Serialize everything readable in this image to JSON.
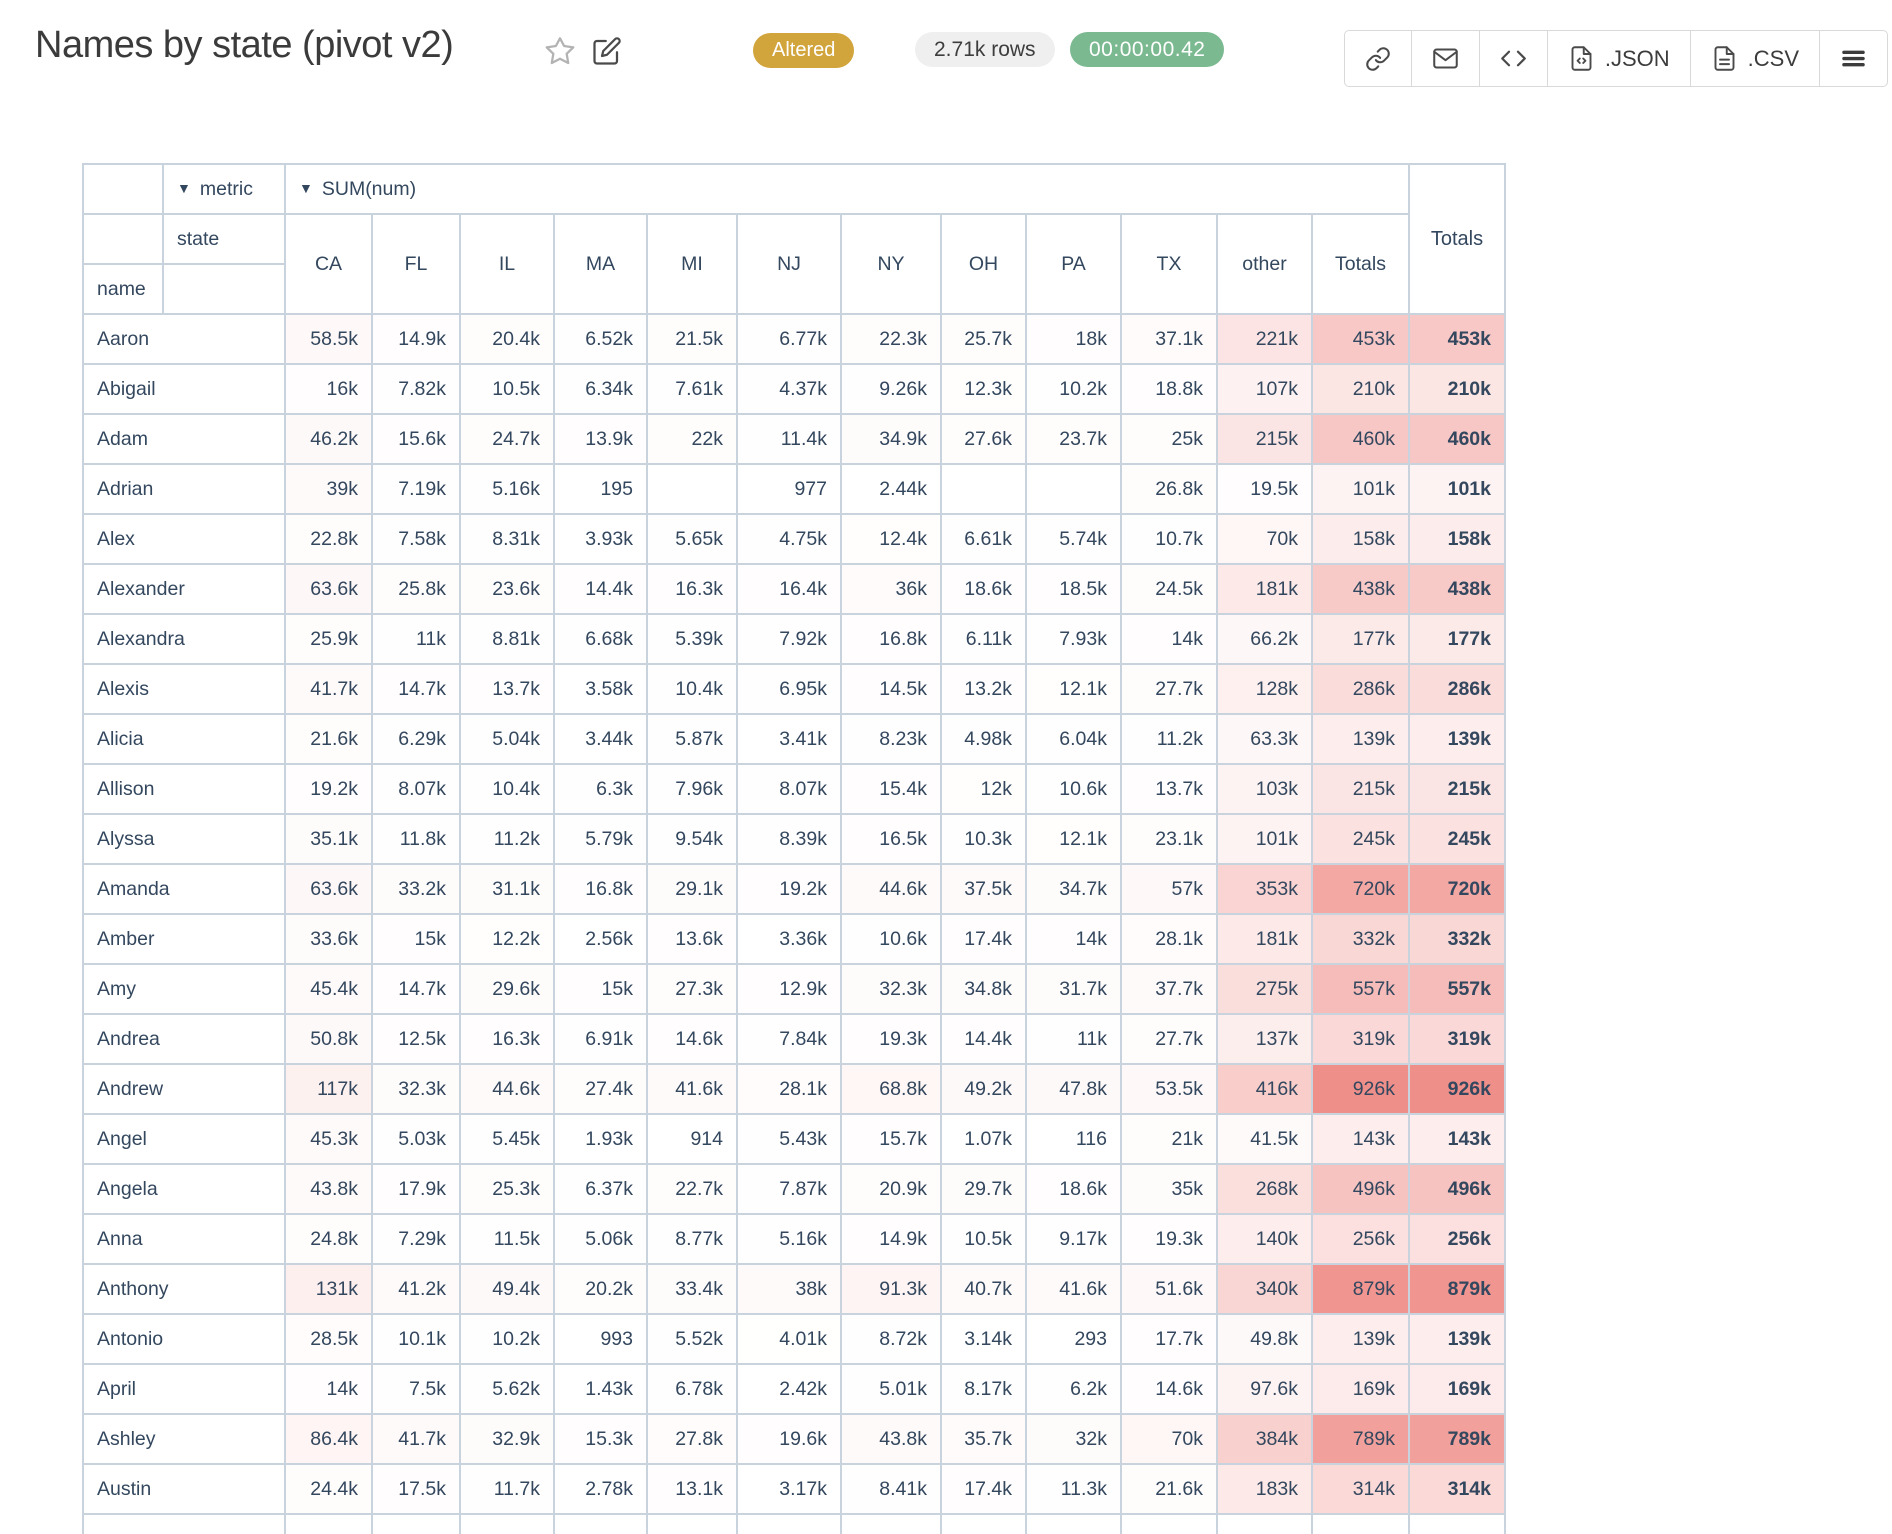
{
  "header": {
    "title": "Names by state (pivot v2)",
    "altered_badge": "Altered",
    "rows_count": "2.71k rows",
    "elapsed_time": "00:00:00.42",
    "export_json_label": ".JSON",
    "export_csv_label": ".CSV"
  },
  "colors": {
    "altered_badge_bg": "#d2a43c",
    "timer_badge_bg": "#7bb990",
    "rows_badge_bg": "#efefef",
    "heat_base": "#ef8f8a",
    "table_border": "#c9d3de",
    "table_text": "#33475e"
  },
  "pivot": {
    "dropdown_icon": "▼",
    "metric_dim": "metric",
    "metric_value": "SUM(num)",
    "col_dim": "state",
    "row_dim": "name",
    "columns": [
      "CA",
      "FL",
      "IL",
      "MA",
      "MI",
      "NJ",
      "NY",
      "OH",
      "PA",
      "TX",
      "other",
      "Totals"
    ],
    "grand_total_label": "Totals",
    "heat_max": 926000,
    "rows": [
      {
        "name": "Aaron",
        "values": [
          "58.5k",
          "14.9k",
          "20.4k",
          "6.52k",
          "21.5k",
          "6.77k",
          "22.3k",
          "25.7k",
          "18k",
          "37.1k",
          "221k",
          "453k"
        ],
        "total": "453k"
      },
      {
        "name": "Abigail",
        "values": [
          "16k",
          "7.82k",
          "10.5k",
          "6.34k",
          "7.61k",
          "4.37k",
          "9.26k",
          "12.3k",
          "10.2k",
          "18.8k",
          "107k",
          "210k"
        ],
        "total": "210k"
      },
      {
        "name": "Adam",
        "values": [
          "46.2k",
          "15.6k",
          "24.7k",
          "13.9k",
          "22k",
          "11.4k",
          "34.9k",
          "27.6k",
          "23.7k",
          "25k",
          "215k",
          "460k"
        ],
        "total": "460k"
      },
      {
        "name": "Adrian",
        "values": [
          "39k",
          "7.19k",
          "5.16k",
          "195",
          "",
          "977",
          "2.44k",
          "",
          "",
          "26.8k",
          "19.5k",
          "101k"
        ],
        "total": "101k"
      },
      {
        "name": "Alex",
        "values": [
          "22.8k",
          "7.58k",
          "8.31k",
          "3.93k",
          "5.65k",
          "4.75k",
          "12.4k",
          "6.61k",
          "5.74k",
          "10.7k",
          "70k",
          "158k"
        ],
        "total": "158k"
      },
      {
        "name": "Alexander",
        "values": [
          "63.6k",
          "25.8k",
          "23.6k",
          "14.4k",
          "16.3k",
          "16.4k",
          "36k",
          "18.6k",
          "18.5k",
          "24.5k",
          "181k",
          "438k"
        ],
        "total": "438k"
      },
      {
        "name": "Alexandra",
        "values": [
          "25.9k",
          "11k",
          "8.81k",
          "6.68k",
          "5.39k",
          "7.92k",
          "16.8k",
          "6.11k",
          "7.93k",
          "14k",
          "66.2k",
          "177k"
        ],
        "total": "177k"
      },
      {
        "name": "Alexis",
        "values": [
          "41.7k",
          "14.7k",
          "13.7k",
          "3.58k",
          "10.4k",
          "6.95k",
          "14.5k",
          "13.2k",
          "12.1k",
          "27.7k",
          "128k",
          "286k"
        ],
        "total": "286k"
      },
      {
        "name": "Alicia",
        "values": [
          "21.6k",
          "6.29k",
          "5.04k",
          "3.44k",
          "5.87k",
          "3.41k",
          "8.23k",
          "4.98k",
          "6.04k",
          "11.2k",
          "63.3k",
          "139k"
        ],
        "total": "139k"
      },
      {
        "name": "Allison",
        "values": [
          "19.2k",
          "8.07k",
          "10.4k",
          "6.3k",
          "7.96k",
          "8.07k",
          "15.4k",
          "12k",
          "10.6k",
          "13.7k",
          "103k",
          "215k"
        ],
        "total": "215k"
      },
      {
        "name": "Alyssa",
        "values": [
          "35.1k",
          "11.8k",
          "11.2k",
          "5.79k",
          "9.54k",
          "8.39k",
          "16.5k",
          "10.3k",
          "12.1k",
          "23.1k",
          "101k",
          "245k"
        ],
        "total": "245k"
      },
      {
        "name": "Amanda",
        "values": [
          "63.6k",
          "33.2k",
          "31.1k",
          "16.8k",
          "29.1k",
          "19.2k",
          "44.6k",
          "37.5k",
          "34.7k",
          "57k",
          "353k",
          "720k"
        ],
        "total": "720k"
      },
      {
        "name": "Amber",
        "values": [
          "33.6k",
          "15k",
          "12.2k",
          "2.56k",
          "13.6k",
          "3.36k",
          "10.6k",
          "17.4k",
          "14k",
          "28.1k",
          "181k",
          "332k"
        ],
        "total": "332k"
      },
      {
        "name": "Amy",
        "values": [
          "45.4k",
          "14.7k",
          "29.6k",
          "15k",
          "27.3k",
          "12.9k",
          "32.3k",
          "34.8k",
          "31.7k",
          "37.7k",
          "275k",
          "557k"
        ],
        "total": "557k"
      },
      {
        "name": "Andrea",
        "values": [
          "50.8k",
          "12.5k",
          "16.3k",
          "6.91k",
          "14.6k",
          "7.84k",
          "19.3k",
          "14.4k",
          "11k",
          "27.7k",
          "137k",
          "319k"
        ],
        "total": "319k"
      },
      {
        "name": "Andrew",
        "values": [
          "117k",
          "32.3k",
          "44.6k",
          "27.4k",
          "41.6k",
          "28.1k",
          "68.8k",
          "49.2k",
          "47.8k",
          "53.5k",
          "416k",
          "926k"
        ],
        "total": "926k"
      },
      {
        "name": "Angel",
        "values": [
          "45.3k",
          "5.03k",
          "5.45k",
          "1.93k",
          "914",
          "5.43k",
          "15.7k",
          "1.07k",
          "116",
          "21k",
          "41.5k",
          "143k"
        ],
        "total": "143k"
      },
      {
        "name": "Angela",
        "values": [
          "43.8k",
          "17.9k",
          "25.3k",
          "6.37k",
          "22.7k",
          "7.87k",
          "20.9k",
          "29.7k",
          "18.6k",
          "35k",
          "268k",
          "496k"
        ],
        "total": "496k"
      },
      {
        "name": "Anna",
        "values": [
          "24.8k",
          "7.29k",
          "11.5k",
          "5.06k",
          "8.77k",
          "5.16k",
          "14.9k",
          "10.5k",
          "9.17k",
          "19.3k",
          "140k",
          "256k"
        ],
        "total": "256k"
      },
      {
        "name": "Anthony",
        "values": [
          "131k",
          "41.2k",
          "49.4k",
          "20.2k",
          "33.4k",
          "38k",
          "91.3k",
          "40.7k",
          "41.6k",
          "51.6k",
          "340k",
          "879k"
        ],
        "total": "879k"
      },
      {
        "name": "Antonio",
        "values": [
          "28.5k",
          "10.1k",
          "10.2k",
          "993",
          "5.52k",
          "4.01k",
          "8.72k",
          "3.14k",
          "293",
          "17.7k",
          "49.8k",
          "139k"
        ],
        "total": "139k"
      },
      {
        "name": "April",
        "values": [
          "14k",
          "7.5k",
          "5.62k",
          "1.43k",
          "6.78k",
          "2.42k",
          "5.01k",
          "8.17k",
          "6.2k",
          "14.6k",
          "97.6k",
          "169k"
        ],
        "total": "169k"
      },
      {
        "name": "Ashley",
        "values": [
          "86.4k",
          "41.7k",
          "32.9k",
          "15.3k",
          "27.8k",
          "19.6k",
          "43.8k",
          "35.7k",
          "32k",
          "70k",
          "384k",
          "789k"
        ],
        "total": "789k"
      },
      {
        "name": "Austin",
        "values": [
          "24.4k",
          "17.5k",
          "11.7k",
          "2.78k",
          "13.1k",
          "3.17k",
          "8.41k",
          "17.4k",
          "11.3k",
          "21.6k",
          "183k",
          "314k"
        ],
        "total": "314k"
      }
    ]
  }
}
